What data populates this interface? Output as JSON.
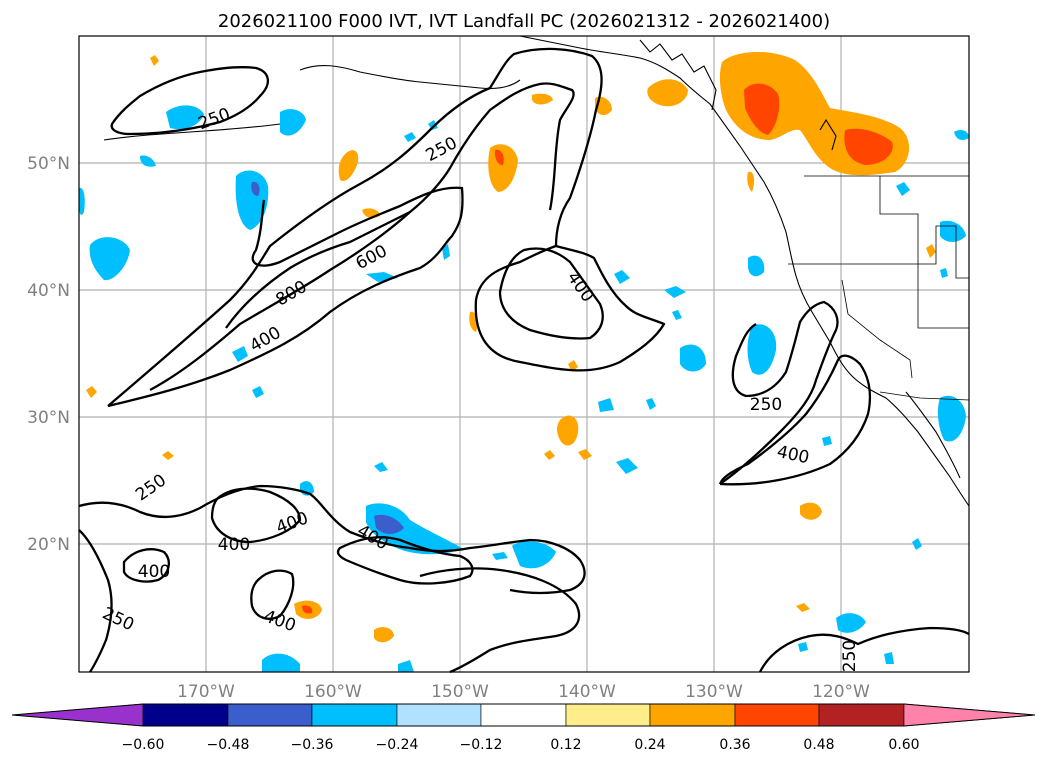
{
  "title": "2026021100 F000 IVT, IVT Landfall PC (2026021312 - 2026021400)",
  "lat_labels": [
    "50°N",
    "40°N",
    "30°N",
    "20°N"
  ],
  "lon_labels": [
    "170°W",
    "160°W",
    "150°W",
    "140°W",
    "130°W",
    "120°W"
  ],
  "contour_labels": [
    "250",
    "250",
    "600",
    "800",
    "400",
    "400",
    "250",
    "400",
    "250",
    "400",
    "400",
    "400",
    "400",
    "250",
    "400",
    "250"
  ],
  "colorbar": {
    "ticks": [
      "−0.60",
      "−0.48",
      "−0.36",
      "−0.24",
      "−0.12",
      "0.12",
      "0.24",
      "0.36",
      "0.48",
      "0.60"
    ],
    "colors": [
      "#9932cc",
      "#00008b",
      "#3a5fcd",
      "#00bfff",
      "#b0e2ff",
      "#ffffff",
      "#ffec8b",
      "#ffa500",
      "#ff4500",
      "#b22222",
      "#ff82ab"
    ]
  },
  "colors": {
    "contour": "#000000",
    "grid": "#b0b0b0",
    "axis_label": "#808080"
  }
}
